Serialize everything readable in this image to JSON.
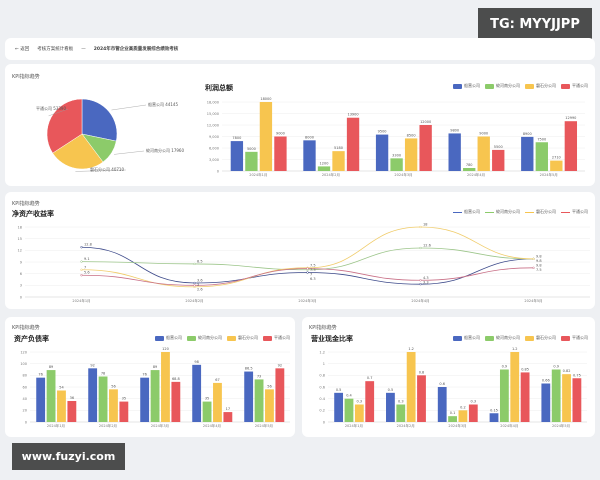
{
  "watermark_top": "TG: MYYJJPP",
  "watermark_bottom": "www.fuzyi.com",
  "breadcrumb": {
    "back": "← 返回",
    "parent": "考核方案统计看板",
    "sep": "—",
    "current": "2024年市管企业高质量发展综合绩效考核"
  },
  "colors": {
    "blue": "#4a68c0",
    "green": "#8ccb6a",
    "yellow": "#f7c54f",
    "red": "#e8575b"
  },
  "companies": [
    "船营公司",
    "蛟河南分公司",
    "磐石分公司",
    "平通公司"
  ],
  "months": [
    "2024年1月",
    "2024年2月",
    "2024年3月",
    "2024年4月",
    "2024年5月"
  ],
  "kpi_label": "KPI指标趋势",
  "chart_data": [
    {
      "type": "pie",
      "title": "KPI指标趋势",
      "labels": [
        "船营公司",
        "蛟河南分公司",
        "磐石分公司",
        "平通公司"
      ],
      "values": [
        44145,
        17960,
        40710,
        53390
      ],
      "display": [
        "船营公司 44145",
        "蛟河南分公司 17960",
        "磐石分公司 40710",
        "平通公司 53390"
      ]
    },
    {
      "type": "bar",
      "title": "利润总额",
      "ylim": [
        0,
        18000
      ],
      "yticks": [
        "0",
        "3,000",
        "6,000",
        "9,000",
        "12,000",
        "15,000",
        "18,000"
      ],
      "series": [
        {
          "name": "船营公司",
          "values": [
            7800,
            8000,
            9500,
            9800,
            8900
          ]
        },
        {
          "name": "蛟河南分公司",
          "values": [
            5000,
            1200,
            3300,
            780,
            7500
          ]
        },
        {
          "name": "磐石分公司",
          "values": [
            18000,
            5180,
            8500,
            9000,
            2710
          ]
        },
        {
          "name": "平通公司",
          "values": [
            9000,
            13900,
            12000,
            5500,
            12990
          ]
        }
      ]
    },
    {
      "type": "line",
      "title": "净资产收益率",
      "ylim": [
        0,
        18
      ],
      "yticks": [
        "0",
        "3",
        "6",
        "9",
        "12",
        "15",
        "18"
      ],
      "series": [
        {
          "name": "船营公司",
          "values": [
            12.8,
            3.6,
            6.3,
            3.3,
            9.8
          ]
        },
        {
          "name": "蛟河南分公司",
          "values": [
            9.1,
            8.5,
            7.0,
            12.6,
            9.8
          ]
        },
        {
          "name": "磐石分公司",
          "values": [
            7.0,
            2.6,
            7.5,
            18,
            9.8
          ]
        },
        {
          "name": "平通公司",
          "values": [
            5.6,
            3.0,
            7.3,
            4.3,
            7.5
          ]
        }
      ]
    },
    {
      "type": "bar",
      "title": "资产负债率",
      "ylim": [
        0,
        120
      ],
      "yticks": [
        "0",
        "20",
        "40",
        "60",
        "80",
        "100",
        "120"
      ],
      "series": [
        {
          "name": "船营公司",
          "values": [
            76,
            92,
            76,
            98,
            86.5
          ]
        },
        {
          "name": "蛟河南分公司",
          "values": [
            89,
            78,
            89,
            35,
            73
          ]
        },
        {
          "name": "磐石分公司",
          "values": [
            54,
            56,
            120,
            67,
            56
          ]
        },
        {
          "name": "平通公司",
          "values": [
            36,
            35,
            68.8,
            17,
            92
          ]
        }
      ]
    },
    {
      "type": "bar",
      "title": "营业现金比率",
      "ylim": [
        0,
        1.2
      ],
      "yticks": [
        "0",
        "0.2",
        "0.4",
        "0.6",
        "0.8",
        "1",
        "1.2"
      ],
      "series": [
        {
          "name": "船营公司",
          "values": [
            0.5,
            0.5,
            0.6,
            0.15,
            0.66
          ]
        },
        {
          "name": "蛟河南分公司",
          "values": [
            0.4,
            0.3,
            0.1,
            0.9,
            0.9
          ]
        },
        {
          "name": "磐石分公司",
          "values": [
            0.3,
            1.2,
            0.2,
            1.2,
            0.82
          ]
        },
        {
          "name": "平通公司",
          "values": [
            0.7,
            0.8,
            0.3,
            0.85,
            0.75
          ]
        }
      ]
    }
  ]
}
